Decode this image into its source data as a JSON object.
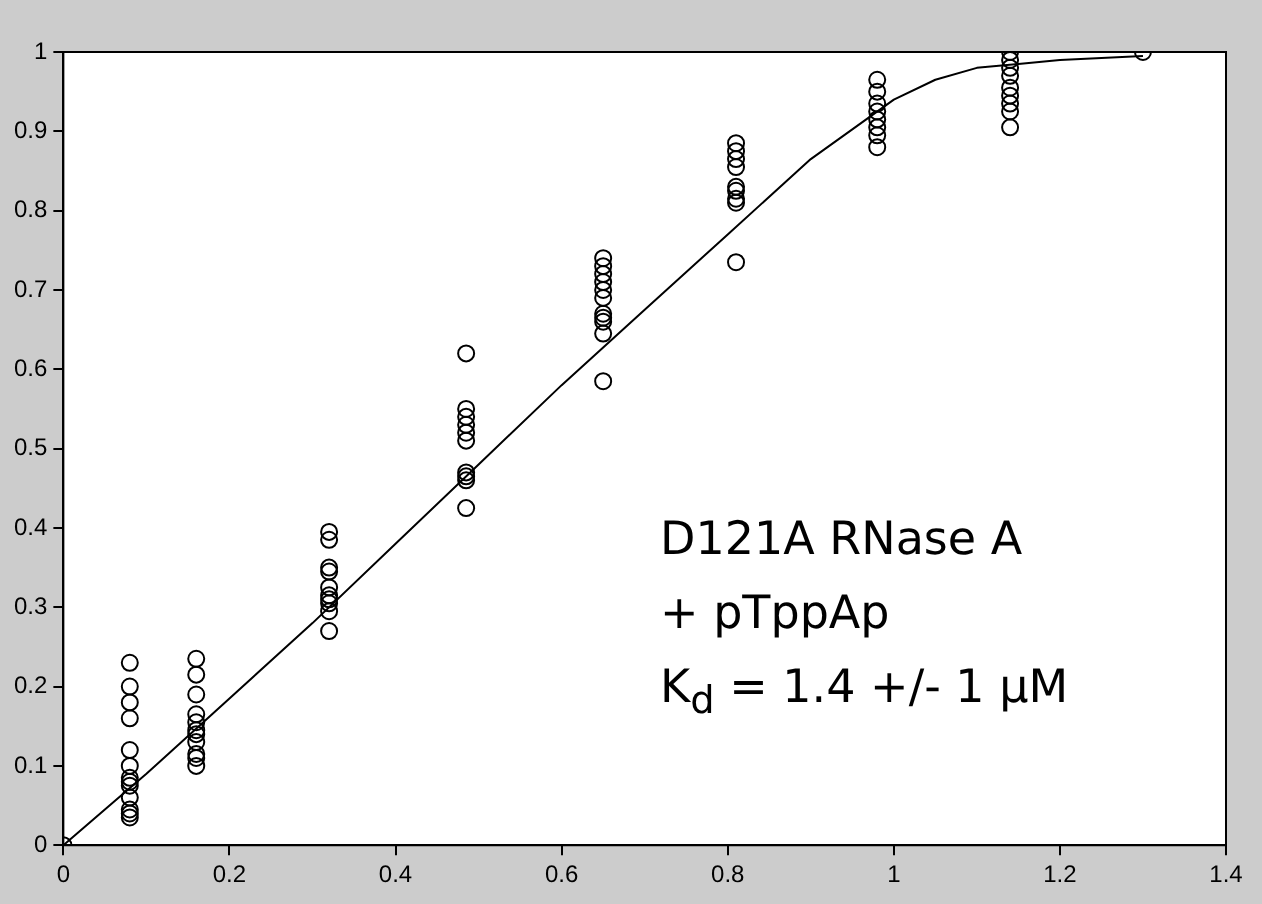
{
  "chart_data": {
    "type": "scatter",
    "marker": "circle",
    "grid": false,
    "legend": false,
    "xlim": [
      0,
      1.4
    ],
    "xticks": [
      0,
      0.2,
      0.4,
      0.6,
      0.8,
      1,
      1.2,
      1.4
    ],
    "ylim": [
      0,
      1
    ],
    "yticks": [
      0,
      0.1,
      0.2,
      0.3,
      0.4,
      0.5,
      0.6,
      0.7,
      0.8,
      0.9,
      1
    ],
    "annotations": [
      "D121A RNase A",
      "+ pTppAp",
      "K$_{d}$ = 1.4  +/- 1 µM"
    ],
    "series": [
      {
        "type": "scatter",
        "color": "#000000",
        "x": [
          0,
          0.08,
          0.08,
          0.08,
          0.08,
          0.08,
          0.08,
          0.08,
          0.08,
          0.08,
          0.08,
          0.08,
          0.08,
          0.08,
          0.16,
          0.16,
          0.16,
          0.16,
          0.16,
          0.16,
          0.16,
          0.16,
          0.16,
          0.16,
          0.16,
          0.32,
          0.32,
          0.32,
          0.32,
          0.32,
          0.32,
          0.32,
          0.32,
          0.32,
          0.32,
          0.485,
          0.485,
          0.485,
          0.485,
          0.485,
          0.485,
          0.485,
          0.485,
          0.485,
          0.485,
          0.65,
          0.65,
          0.65,
          0.65,
          0.65,
          0.65,
          0.65,
          0.65,
          0.65,
          0.65,
          0.65,
          0.81,
          0.81,
          0.81,
          0.81,
          0.81,
          0.81,
          0.81,
          0.81,
          0.81,
          0.98,
          0.98,
          0.98,
          0.98,
          0.98,
          0.98,
          0.98,
          0.98,
          1.14,
          1.14,
          1.14,
          1.14,
          1.14,
          1.14,
          1.14,
          1.14,
          1.14,
          1.3
        ],
        "values": [
          0,
          0.23,
          0.2,
          0.18,
          0.16,
          0.12,
          0.1,
          0.085,
          0.08,
          0.075,
          0.06,
          0.045,
          0.04,
          0.035,
          0.235,
          0.215,
          0.19,
          0.165,
          0.155,
          0.145,
          0.14,
          0.13,
          0.115,
          0.11,
          0.1,
          0.395,
          0.385,
          0.35,
          0.345,
          0.325,
          0.315,
          0.31,
          0.305,
          0.295,
          0.27,
          0.62,
          0.55,
          0.54,
          0.53,
          0.52,
          0.51,
          0.47,
          0.465,
          0.46,
          0.425,
          0.74,
          0.73,
          0.72,
          0.71,
          0.7,
          0.69,
          0.67,
          0.665,
          0.66,
          0.645,
          0.585,
          0.885,
          0.875,
          0.865,
          0.855,
          0.83,
          0.825,
          0.815,
          0.81,
          0.735,
          0.965,
          0.95,
          0.935,
          0.925,
          0.915,
          0.905,
          0.895,
          0.88,
          1,
          0.99,
          0.98,
          0.97,
          0.955,
          0.945,
          0.935,
          0.925,
          0.905,
          1
        ]
      },
      {
        "type": "line",
        "color": "#000000",
        "marker": "none",
        "line_style": "solid",
        "x": [
          0,
          0.1,
          0.2,
          0.3,
          0.4,
          0.5,
          0.6,
          0.7,
          0.8,
          0.9,
          1,
          1.05,
          1.1,
          1.15,
          1.2,
          1.3
        ],
        "values": [
          0,
          0.09,
          0.185,
          0.28,
          0.38,
          0.48,
          0.58,
          0.675,
          0.77,
          0.865,
          0.94,
          0.965,
          0.98,
          0.985,
          0.99,
          0.995
        ]
      }
    ]
  }
}
